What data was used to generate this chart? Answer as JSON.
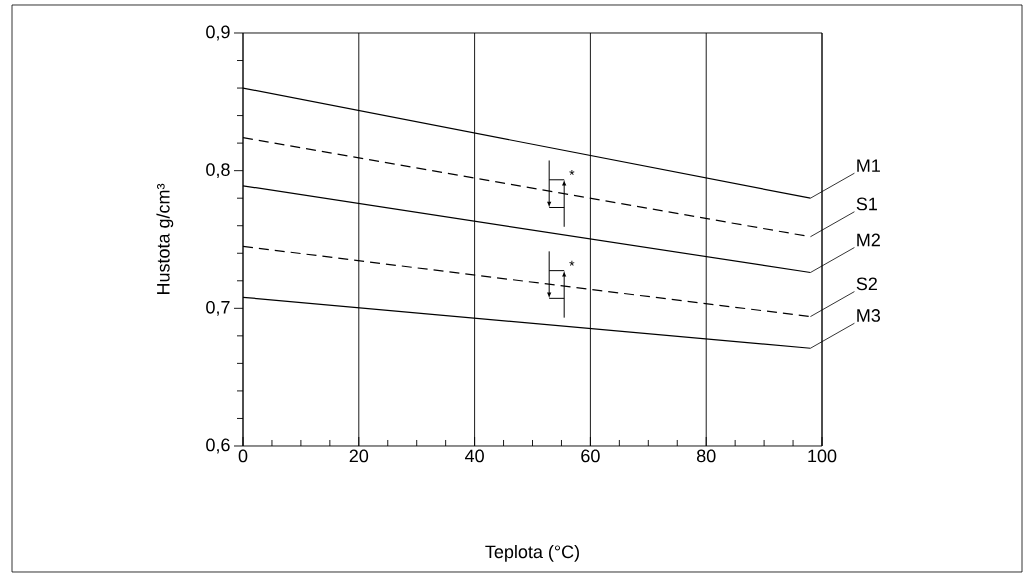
{
  "chart_data": {
    "type": "line",
    "xlabel": "Teplota (°C)",
    "ylabel": "Hustota g/cm³",
    "x": [
      0,
      98
    ],
    "series": [
      {
        "name": "M1",
        "color": "#000000",
        "line_style": "solid",
        "values": [
          0.86,
          0.78
        ]
      },
      {
        "name": "S1",
        "color": "#000000",
        "line_style": "dashed",
        "values": [
          0.824,
          0.752
        ]
      },
      {
        "name": "M2",
        "color": "#000000",
        "line_style": "solid",
        "values": [
          0.789,
          0.726
        ]
      },
      {
        "name": "S2",
        "color": "#000000",
        "line_style": "dashed",
        "values": [
          0.745,
          0.694
        ]
      },
      {
        "name": "M3",
        "color": "#000000",
        "line_style": "solid",
        "values": [
          0.708,
          0.671
        ]
      }
    ],
    "xlim": [
      0,
      100
    ],
    "xticks": [
      0,
      20,
      40,
      60,
      80,
      100
    ],
    "ylim": [
      0.6,
      0.9
    ],
    "yticks": [
      {
        "value": 0.6,
        "label": "0,6"
      },
      {
        "value": 0.7,
        "label": "0,7"
      },
      {
        "value": 0.8,
        "label": "0,8"
      },
      {
        "value": 0.9,
        "label": "0,9"
      }
    ],
    "grid": "x",
    "legend": false,
    "annotations": [
      "*",
      "*"
    ]
  }
}
